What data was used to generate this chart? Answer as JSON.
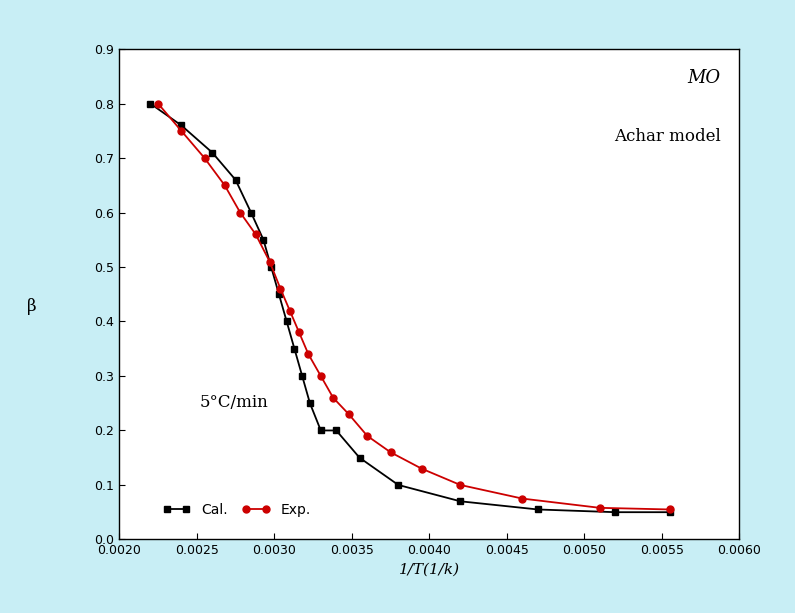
{
  "title_line1": "MO",
  "title_line2": "Achar model",
  "xlabel": "1/T(1/k)",
  "ylabel": "β",
  "annotation": "5°C/min",
  "xlim": [
    0.002,
    0.006
  ],
  "ylim": [
    0.0,
    0.9
  ],
  "xticks": [
    0.002,
    0.0025,
    0.003,
    0.0035,
    0.004,
    0.0045,
    0.005,
    0.0055,
    0.006
  ],
  "yticks": [
    0.0,
    0.1,
    0.2,
    0.3,
    0.4,
    0.5,
    0.6,
    0.7,
    0.8,
    0.9
  ],
  "cal_x": [
    0.0022,
    0.0024,
    0.0026,
    0.00275,
    0.00285,
    0.00293,
    0.00298,
    0.00303,
    0.00308,
    0.00313,
    0.00318,
    0.00323,
    0.0033,
    0.0034,
    0.00355,
    0.0038,
    0.0042,
    0.0047,
    0.0052,
    0.00555
  ],
  "cal_y": [
    0.8,
    0.76,
    0.71,
    0.66,
    0.6,
    0.55,
    0.5,
    0.45,
    0.4,
    0.35,
    0.3,
    0.25,
    0.2,
    0.2,
    0.15,
    0.1,
    0.07,
    0.055,
    0.05,
    0.05
  ],
  "exp_x": [
    0.00225,
    0.0024,
    0.00255,
    0.00268,
    0.00278,
    0.00288,
    0.00297,
    0.00304,
    0.0031,
    0.00316,
    0.00322,
    0.0033,
    0.00338,
    0.00348,
    0.0036,
    0.00375,
    0.00395,
    0.0042,
    0.0046,
    0.0051,
    0.00555
  ],
  "exp_y": [
    0.8,
    0.75,
    0.7,
    0.65,
    0.6,
    0.56,
    0.51,
    0.46,
    0.42,
    0.38,
    0.34,
    0.3,
    0.26,
    0.23,
    0.19,
    0.16,
    0.13,
    0.1,
    0.075,
    0.058,
    0.055
  ],
  "cal_color": "#000000",
  "exp_color": "#cc0000",
  "background_color": "#c8eef5",
  "plot_bg_color": "#ffffff",
  "cal_marker": "s",
  "exp_marker": "o",
  "cal_label": "Cal.",
  "exp_label": "Exp.",
  "marker_size": 5,
  "linewidth": 1.3,
  "title_fontsize": 13,
  "axis_fontsize": 11,
  "tick_fontsize": 9,
  "legend_fontsize": 10,
  "annotation_fontsize": 12
}
